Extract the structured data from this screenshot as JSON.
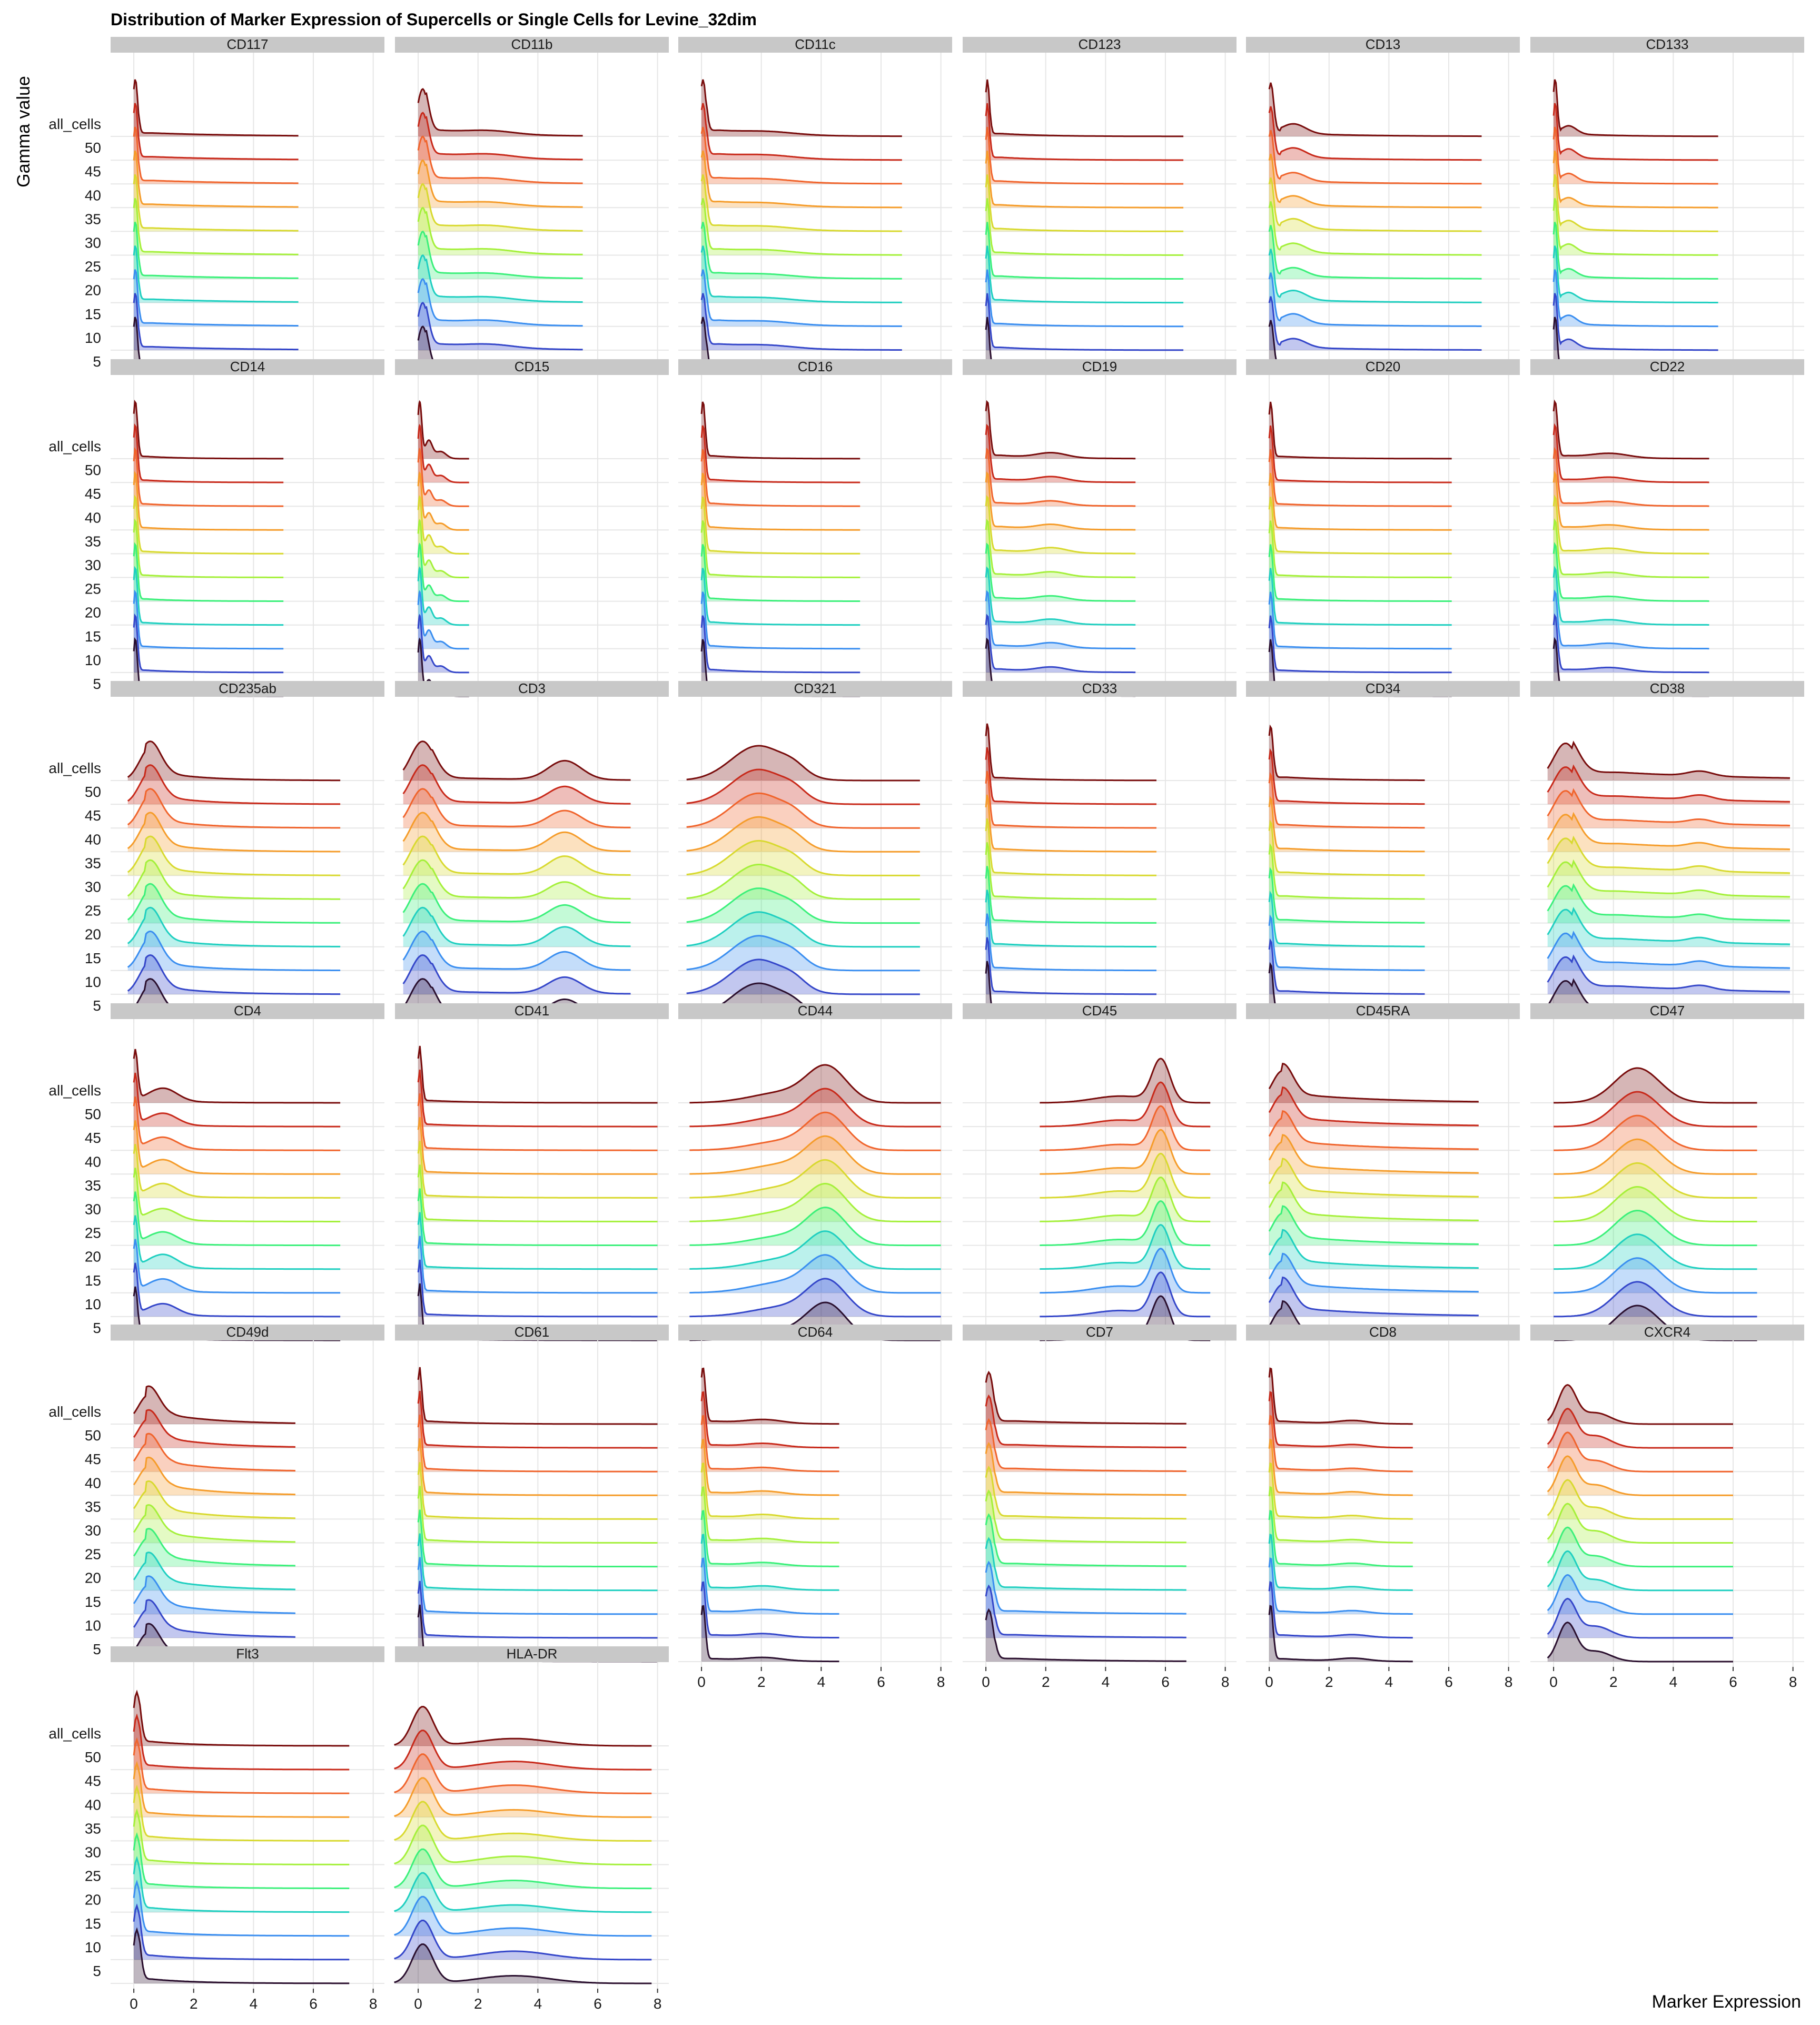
{
  "chart_data": {
    "type": "ridgeline",
    "title": "Distribution of Marker Expression of Supercells or Single Cells for Levine_32dim",
    "xlabel": "Marker Expression",
    "ylabel": "Gamma value",
    "xlim": [
      -0.6,
      8.2
    ],
    "x_ticks": [
      0,
      2,
      4,
      6,
      8
    ],
    "y_levels": [
      "5",
      "10",
      "15",
      "20",
      "25",
      "30",
      "35",
      "40",
      "45",
      "50",
      "all_cells"
    ],
    "level_colors": [
      "#2a0f2e",
      "#3446c9",
      "#3a8ef0",
      "#1fcfc0",
      "#3bf07a",
      "#a4f03a",
      "#d8d92f",
      "#f59c2a",
      "#f0642c",
      "#c8291a",
      "#780c0c"
    ],
    "grid": true,
    "panel_grid": {
      "rows": 7,
      "cols": 6
    },
    "legend": "none",
    "panels": [
      {
        "name": "CD117",
        "x_range": [
          0,
          5.5
        ],
        "peaks": [
          [
            0.05,
            0.08,
            1.0
          ]
        ],
        "tails": [
          [
            0.6,
            1.0,
            0.06
          ]
        ],
        "amplitude": 0.9
      },
      {
        "name": "CD11b",
        "x_range": [
          0,
          5.5
        ],
        "peaks": [
          [
            0.15,
            0.18,
            1.0
          ],
          [
            2.4,
            0.8,
            0.07
          ]
        ],
        "tails": [
          [
            0.8,
            0.7,
            0.12
          ]
        ],
        "amplitude": 0.75
      },
      {
        "name": "CD11c",
        "x_range": [
          0,
          6.7
        ],
        "peaks": [
          [
            0.05,
            0.1,
            1.0
          ],
          [
            2.2,
            0.9,
            0.05
          ]
        ],
        "tails": [
          [
            0.6,
            0.6,
            0.1
          ]
        ],
        "amplitude": 0.9
      },
      {
        "name": "CD123",
        "x_range": [
          0,
          6.6
        ],
        "peaks": [
          [
            0.05,
            0.07,
            1.0
          ]
        ],
        "tails": [
          [
            0.5,
            0.5,
            0.05
          ]
        ],
        "amplitude": 0.9
      },
      {
        "name": "CD13",
        "x_range": [
          0,
          7.1
        ],
        "peaks": [
          [
            0.05,
            0.1,
            1.0
          ],
          [
            0.8,
            0.4,
            0.18
          ]
        ],
        "tails": [
          [
            1.2,
            0.8,
            0.05
          ]
        ],
        "amplitude": 0.85
      },
      {
        "name": "CD133",
        "x_range": [
          0,
          5.5
        ],
        "peaks": [
          [
            0.05,
            0.07,
            1.0
          ],
          [
            0.5,
            0.25,
            0.15
          ]
        ],
        "tails": [
          [
            0.9,
            0.5,
            0.04
          ]
        ],
        "amplitude": 0.9
      },
      {
        "name": "CD14",
        "x_range": [
          0,
          5.0
        ],
        "peaks": [
          [
            0.05,
            0.07,
            1.0
          ]
        ],
        "tails": [
          [
            0.4,
            0.4,
            0.04
          ]
        ],
        "amplitude": 0.9
      },
      {
        "name": "CD15",
        "x_range": [
          0,
          1.7
        ],
        "peaks": [
          [
            0.05,
            0.07,
            1.0
          ],
          [
            0.35,
            0.12,
            0.3
          ],
          [
            0.75,
            0.18,
            0.12
          ]
        ],
        "tails": [],
        "amplitude": 0.9
      },
      {
        "name": "CD16",
        "x_range": [
          0,
          5.3
        ],
        "peaks": [
          [
            0.05,
            0.07,
            1.0
          ]
        ],
        "tails": [
          [
            0.4,
            0.4,
            0.05
          ]
        ],
        "amplitude": 0.9
      },
      {
        "name": "CD19",
        "x_range": [
          0,
          5.0
        ],
        "peaks": [
          [
            0.05,
            0.08,
            1.0
          ],
          [
            2.2,
            0.5,
            0.08
          ]
        ],
        "tails": [
          [
            0.5,
            0.5,
            0.06
          ]
        ],
        "amplitude": 0.9
      },
      {
        "name": "CD20",
        "x_range": [
          0,
          6.1
        ],
        "peaks": [
          [
            0.05,
            0.07,
            1.0
          ]
        ],
        "tails": [
          [
            0.4,
            0.5,
            0.04
          ]
        ],
        "amplitude": 0.9
      },
      {
        "name": "CD22",
        "x_range": [
          0,
          5.2
        ],
        "peaks": [
          [
            0.05,
            0.08,
            1.0
          ],
          [
            1.9,
            0.6,
            0.07
          ]
        ],
        "tails": [
          [
            0.5,
            0.5,
            0.05
          ]
        ],
        "amplitude": 0.9
      },
      {
        "name": "CD235ab",
        "x_range": [
          -0.2,
          6.9
        ],
        "peaks": [
          [
            0.55,
            0.35,
            1.0
          ]
        ],
        "tails": [
          [
            1.2,
            0.5,
            0.2
          ]
        ],
        "amplitude": 0.62
      },
      {
        "name": "CD3",
        "x_range": [
          -0.5,
          7.1
        ],
        "peaks": [
          [
            0.15,
            0.4,
            1.0
          ],
          [
            4.9,
            0.55,
            0.45
          ]
        ],
        "tails": [
          [
            1.5,
            1.2,
            0.06
          ]
        ],
        "amplitude": 0.62
      },
      {
        "name": "CD321",
        "x_range": [
          -0.5,
          7.3
        ],
        "peaks": [
          [
            1.9,
            0.9,
            1.0
          ],
          [
            3.1,
            0.4,
            0.2
          ]
        ],
        "tails": [],
        "amplitude": 0.55
      },
      {
        "name": "CD33",
        "x_range": [
          0,
          5.7
        ],
        "peaks": [
          [
            0.05,
            0.07,
            1.0
          ]
        ],
        "tails": [
          [
            0.5,
            0.5,
            0.05
          ]
        ],
        "amplitude": 0.9
      },
      {
        "name": "CD34",
        "x_range": [
          0,
          5.2
        ],
        "peaks": [
          [
            0.05,
            0.08,
            1.0
          ]
        ],
        "tails": [
          [
            0.6,
            0.6,
            0.06
          ]
        ],
        "amplitude": 0.85
      },
      {
        "name": "CD38",
        "x_range": [
          -0.2,
          7.9
        ],
        "peaks": [
          [
            0.4,
            0.4,
            1.0
          ],
          [
            4.9,
            0.4,
            0.12
          ]
        ],
        "tails": [
          [
            2.2,
            1.6,
            0.22
          ]
        ],
        "amplitude": 0.6
      },
      {
        "name": "CD4",
        "x_range": [
          0,
          6.9
        ],
        "peaks": [
          [
            0.05,
            0.08,
            1.0
          ],
          [
            1.0,
            0.45,
            0.22
          ]
        ],
        "tails": [
          [
            0.6,
            0.4,
            0.06
          ]
        ],
        "amplitude": 0.85
      },
      {
        "name": "CD41",
        "x_range": [
          0,
          8.0
        ],
        "peaks": [
          [
            0.05,
            0.07,
            1.0
          ]
        ],
        "tails": [
          [
            0.4,
            0.5,
            0.04
          ]
        ],
        "amplitude": 0.9
      },
      {
        "name": "CD44",
        "x_range": [
          -0.4,
          8.0
        ],
        "peaks": [
          [
            4.2,
            0.65,
            1.0
          ],
          [
            2.8,
            1.1,
            0.3
          ]
        ],
        "tails": [],
        "amplitude": 0.6
      },
      {
        "name": "CD45",
        "x_range": [
          1.8,
          7.5
        ],
        "peaks": [
          [
            5.85,
            0.3,
            1.0
          ],
          [
            4.5,
            0.9,
            0.15
          ]
        ],
        "tails": [],
        "amplitude": 0.7
      },
      {
        "name": "CD45RA",
        "x_range": [
          0,
          7.0
        ],
        "peaks": [
          [
            0.45,
            0.35,
            1.0
          ]
        ],
        "tails": [
          [
            1.5,
            1.0,
            0.22
          ]
        ],
        "amplitude": 0.62
      },
      {
        "name": "CD47",
        "x_range": [
          0,
          6.8
        ],
        "peaks": [
          [
            2.8,
            0.75,
            1.0
          ]
        ],
        "tails": [],
        "amplitude": 0.55
      },
      {
        "name": "CD49d",
        "x_range": [
          0,
          5.4
        ],
        "peaks": [
          [
            0.5,
            0.35,
            1.0
          ]
        ],
        "tails": [
          [
            1.3,
            0.6,
            0.3
          ]
        ],
        "amplitude": 0.6
      },
      {
        "name": "CD61",
        "x_range": [
          0,
          8.0
        ],
        "peaks": [
          [
            0.05,
            0.07,
            1.0
          ]
        ],
        "tails": [
          [
            0.4,
            0.5,
            0.05
          ]
        ],
        "amplitude": 0.9
      },
      {
        "name": "CD64",
        "x_range": [
          0,
          4.6
        ],
        "peaks": [
          [
            0.05,
            0.08,
            1.0
          ],
          [
            2.1,
            0.6,
            0.06
          ]
        ],
        "tails": [
          [
            0.5,
            0.5,
            0.05
          ]
        ],
        "amplitude": 0.88
      },
      {
        "name": "CD7",
        "x_range": [
          0,
          6.7
        ],
        "peaks": [
          [
            0.1,
            0.15,
            1.0
          ]
        ],
        "tails": [
          [
            1.0,
            0.9,
            0.06
          ]
        ],
        "amplitude": 0.82
      },
      {
        "name": "CD8",
        "x_range": [
          0,
          4.8
        ],
        "peaks": [
          [
            0.05,
            0.08,
            1.0
          ],
          [
            2.8,
            0.5,
            0.05
          ]
        ],
        "tails": [
          [
            0.5,
            0.5,
            0.05
          ]
        ],
        "amplitude": 0.88
      },
      {
        "name": "CXCR4",
        "x_range": [
          -0.2,
          6.0
        ],
        "peaks": [
          [
            0.45,
            0.3,
            1.0
          ],
          [
            1.4,
            0.5,
            0.3
          ]
        ],
        "tails": [],
        "amplitude": 0.62
      },
      {
        "name": "Flt3",
        "x_range": [
          0,
          7.2
        ],
        "peaks": [
          [
            0.1,
            0.12,
            1.0
          ]
        ],
        "tails": [
          [
            0.6,
            0.5,
            0.08
          ]
        ],
        "amplitude": 0.85
      },
      {
        "name": "HLA-DR",
        "x_range": [
          -0.8,
          7.8
        ],
        "peaks": [
          [
            0.15,
            0.35,
            1.0
          ],
          [
            3.2,
            1.2,
            0.2
          ]
        ],
        "tails": [],
        "amplitude": 0.62
      }
    ]
  }
}
